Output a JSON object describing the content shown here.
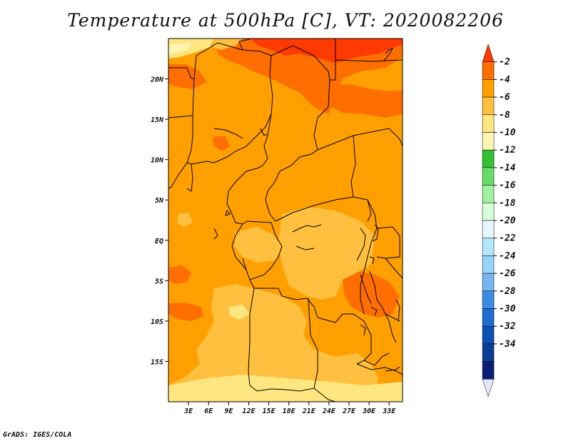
{
  "title": "Temperature at 500hPa [C], VT: 2020082206",
  "credit": "GrADS: IGES/COLA",
  "map": {
    "lon_range": [
      0,
      35
    ],
    "lat_range": [
      -20,
      25
    ],
    "lat_ticks": [
      {
        "value": 20,
        "label": "20N"
      },
      {
        "value": 15,
        "label": "15N"
      },
      {
        "value": 10,
        "label": "10N"
      },
      {
        "value": 5,
        "label": "5N"
      },
      {
        "value": 0,
        "label": "EQ"
      },
      {
        "value": -5,
        "label": "5S"
      },
      {
        "value": -10,
        "label": "10S"
      },
      {
        "value": -15,
        "label": "15S"
      }
    ],
    "lon_ticks": [
      {
        "value": 3,
        "label": "3E"
      },
      {
        "value": 6,
        "label": "6E"
      },
      {
        "value": 9,
        "label": "9E"
      },
      {
        "value": 12,
        "label": "12E"
      },
      {
        "value": 15,
        "label": "15E"
      },
      {
        "value": 18,
        "label": "18E"
      },
      {
        "value": 21,
        "label": "21E"
      },
      {
        "value": 24,
        "label": "24E"
      },
      {
        "value": 27,
        "label": "27E"
      },
      {
        "value": 30,
        "label": "30E"
      },
      {
        "value": 33,
        "label": "33E"
      }
    ],
    "background_color": "#ffa000"
  },
  "colorbar": {
    "labels": [
      "-2",
      "-4",
      "-6",
      "-8",
      "-10",
      "-12",
      "-14",
      "-16",
      "-18",
      "-20",
      "-22",
      "-24",
      "-26",
      "-28",
      "-30",
      "-32",
      "-34"
    ],
    "colors": [
      "#ff3a00",
      "#ff6e00",
      "#ffa000",
      "#ffc040",
      "#ffe680",
      "#fff5b0",
      "#33c033",
      "#66dd66",
      "#a0f0a0",
      "#d8ffd8",
      "#e6f7ff",
      "#b4e6ff",
      "#96d2fa",
      "#78b4f0",
      "#3c8ce6",
      "#1e6ed2",
      "#0a50b4",
      "#0a3c96",
      "#0a1e78",
      "#e6e6ff"
    ]
  }
}
